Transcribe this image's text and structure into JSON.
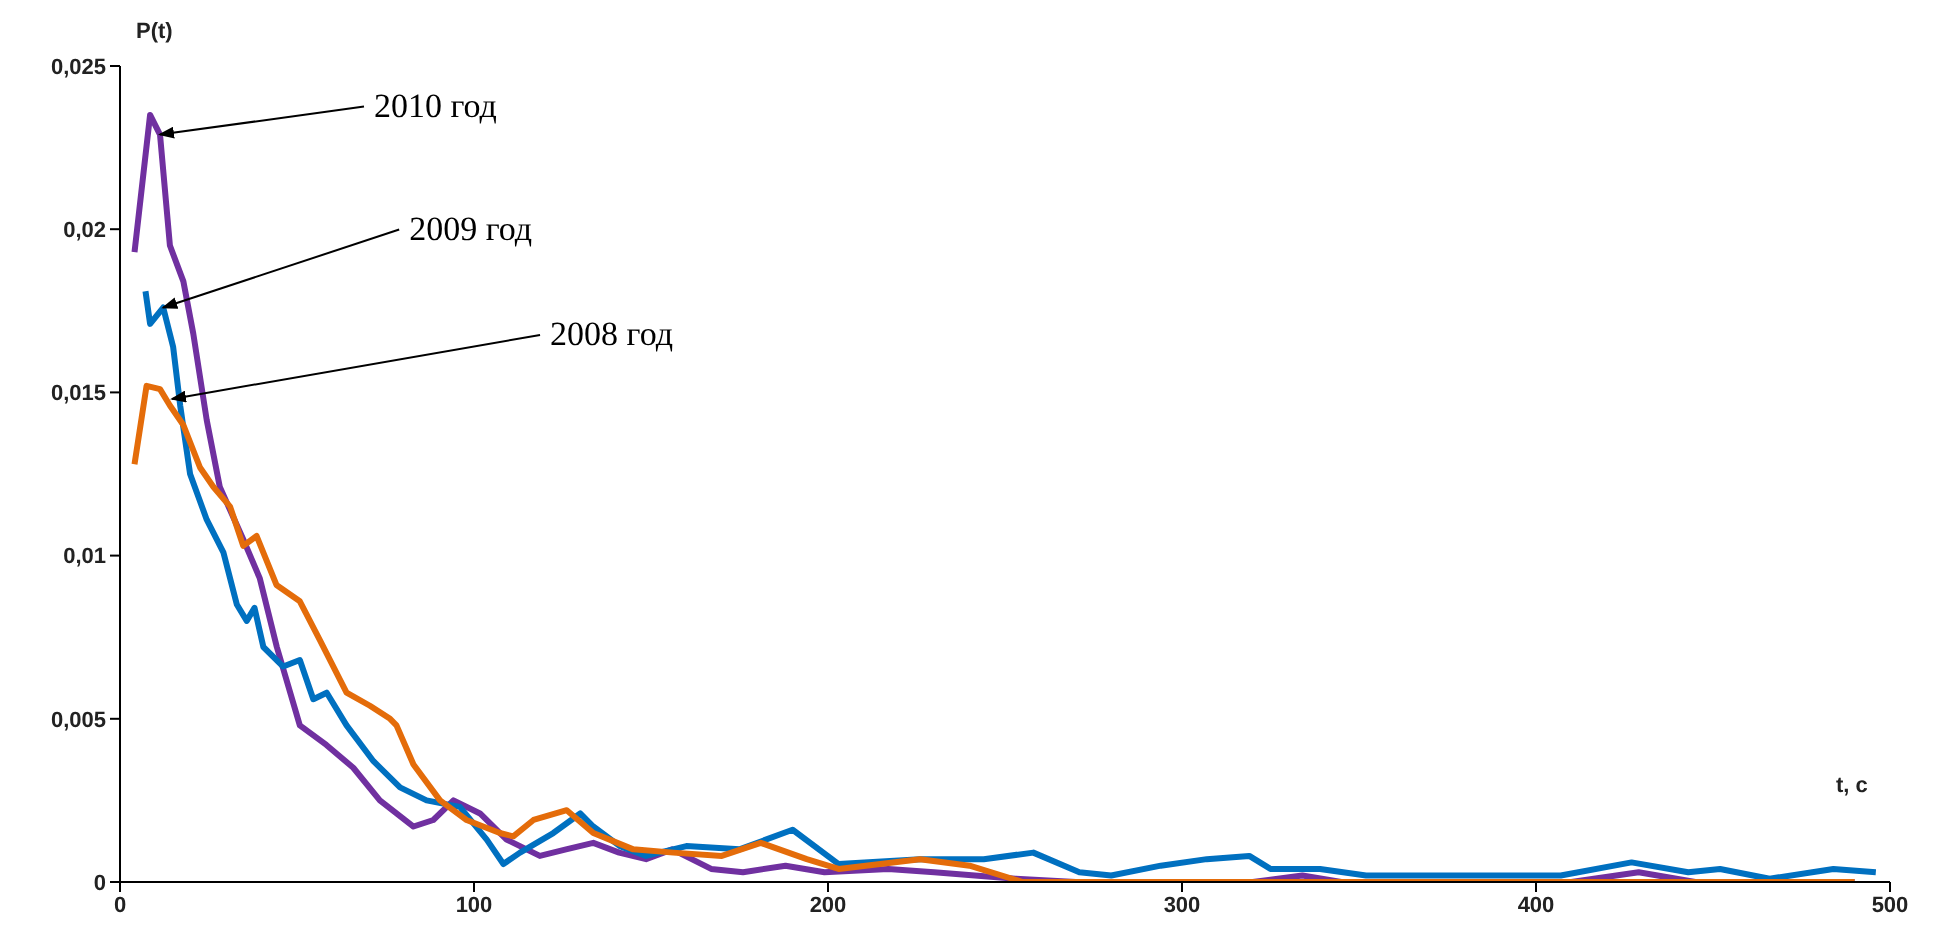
{
  "chart_data": {
    "type": "line",
    "xlabel": "t, c",
    "ylabel": "P(t)",
    "xlim": [
      0,
      500
    ],
    "xticks": [
      0,
      100,
      200,
      300,
      400,
      500
    ],
    "ylim": [
      0,
      0.025
    ],
    "yticks": [
      {
        "value": 0,
        "label": "0"
      },
      {
        "value": 0.005,
        "label": "0,005"
      },
      {
        "value": 0.01,
        "label": "0,01"
      },
      {
        "value": 0.015,
        "label": "0,015"
      },
      {
        "value": 0.02,
        "label": "0,02"
      },
      {
        "value": 0.025,
        "label": "0,025"
      }
    ],
    "grid": false,
    "marker": "none",
    "line_style": "solid",
    "annotations": [
      {
        "text": "2010 год",
        "x": 11.3,
        "y": 0.0229
      },
      {
        "text": "2009 год",
        "x": 12.2,
        "y": 0.0176
      },
      {
        "text": "2008 год",
        "x": 14.7,
        "y": 0.0148
      }
    ],
    "series": [
      {
        "color": "#7030a0",
        "x": [
          4.1,
          8.5,
          11.3,
          14.1,
          17.9,
          20.7,
          24.5,
          28.2,
          34.8,
          39.5,
          44.3,
          50.8,
          58.3,
          65.9,
          73.4,
          82.9,
          88.5,
          94.2,
          101.7,
          109.2,
          118.6,
          126,
          133.7,
          141,
          148.6,
          156,
          167,
          176,
          188,
          199,
          217,
          230,
          253,
          270,
          320,
          334,
          345,
          410,
          429,
          445,
          490
        ],
        "values": [
          0.0193,
          0.0235,
          0.0229,
          0.0195,
          0.0184,
          0.0168,
          0.01415,
          0.0121,
          0.0105,
          0.0093,
          0.0072,
          0.0048,
          0.0042,
          0.0035,
          0.0025,
          0.0017,
          0.0019,
          0.0025,
          0.0021,
          0.0013,
          0.0008,
          0.001,
          0.0012,
          0.0009,
          0.0007,
          0.001,
          0.0004,
          0.0003,
          0.0005,
          0.0003,
          0.0004,
          0.0003,
          0.0001,
          0,
          0,
          0.0002,
          0,
          0,
          0.0003,
          0,
          0
        ]
      },
      {
        "color": "#0070c0",
        "x": [
          7.2,
          8.5,
          12.2,
          15,
          17,
          19.8,
          24.5,
          29.2,
          33,
          35.8,
          38,
          40.5,
          46.1,
          50.8,
          54.6,
          58.4,
          64,
          71.6,
          79.1,
          86.6,
          96,
          103.6,
          108.3,
          113,
          122.4,
          130,
          133.7,
          141.2,
          148.6,
          160,
          175,
          190,
          203,
          226,
          244,
          258,
          271,
          280,
          294,
          307,
          319,
          325,
          339,
          352,
          373,
          407,
          427,
          443,
          452,
          466,
          484,
          496
        ],
        "values": [
          0.0181,
          0.0171,
          0.0176,
          0.0164,
          0.0146,
          0.0125,
          0.0111,
          0.0101,
          0.0085,
          0.008,
          0.0084,
          0.0072,
          0.0066,
          0.0068,
          0.0056,
          0.0058,
          0.0048,
          0.0037,
          0.0029,
          0.0025,
          0.0023,
          0.0013,
          0.00055,
          0.0009,
          0.0015,
          0.0021,
          0.0017,
          0.0011,
          0.0008,
          0.0011,
          0.001,
          0.0016,
          0.00055,
          0.0007,
          0.0007,
          0.0009,
          0.0003,
          0.0002,
          0.0005,
          0.0007,
          0.0008,
          0.0004,
          0.0004,
          0.0002,
          0.0002,
          0.0002,
          0.0006,
          0.0003,
          0.0004,
          0.0001,
          0.0004,
          0.0003
        ]
      },
      {
        "color": "#e46c0a",
        "x": [
          4.1,
          7.5,
          11.3,
          14.1,
          17.9,
          22.6,
          26.4,
          31.1,
          34.8,
          38.6,
          44.2,
          50.8,
          56.5,
          64,
          70.6,
          76.3,
          78.1,
          82.9,
          90.4,
          97.9,
          107.3,
          111.1,
          116.8,
          126.2,
          133.7,
          145,
          156.3,
          170,
          181,
          194,
          203,
          226,
          240,
          255,
          300,
          400,
          490
        ],
        "values": [
          0.0128,
          0.0152,
          0.0151,
          0.0146,
          0.014,
          0.0127,
          0.0121,
          0.0115,
          0.0103,
          0.0106,
          0.0091,
          0.0086,
          0.0074,
          0.0058,
          0.0054,
          0.005,
          0.0048,
          0.0036,
          0.0025,
          0.0019,
          0.0015,
          0.0014,
          0.0019,
          0.0022,
          0.0015,
          0.001,
          0.0009,
          0.0008,
          0.0012,
          0.0007,
          0.0004,
          0.0007,
          0.0005,
          0,
          0,
          0,
          0
        ]
      }
    ]
  }
}
